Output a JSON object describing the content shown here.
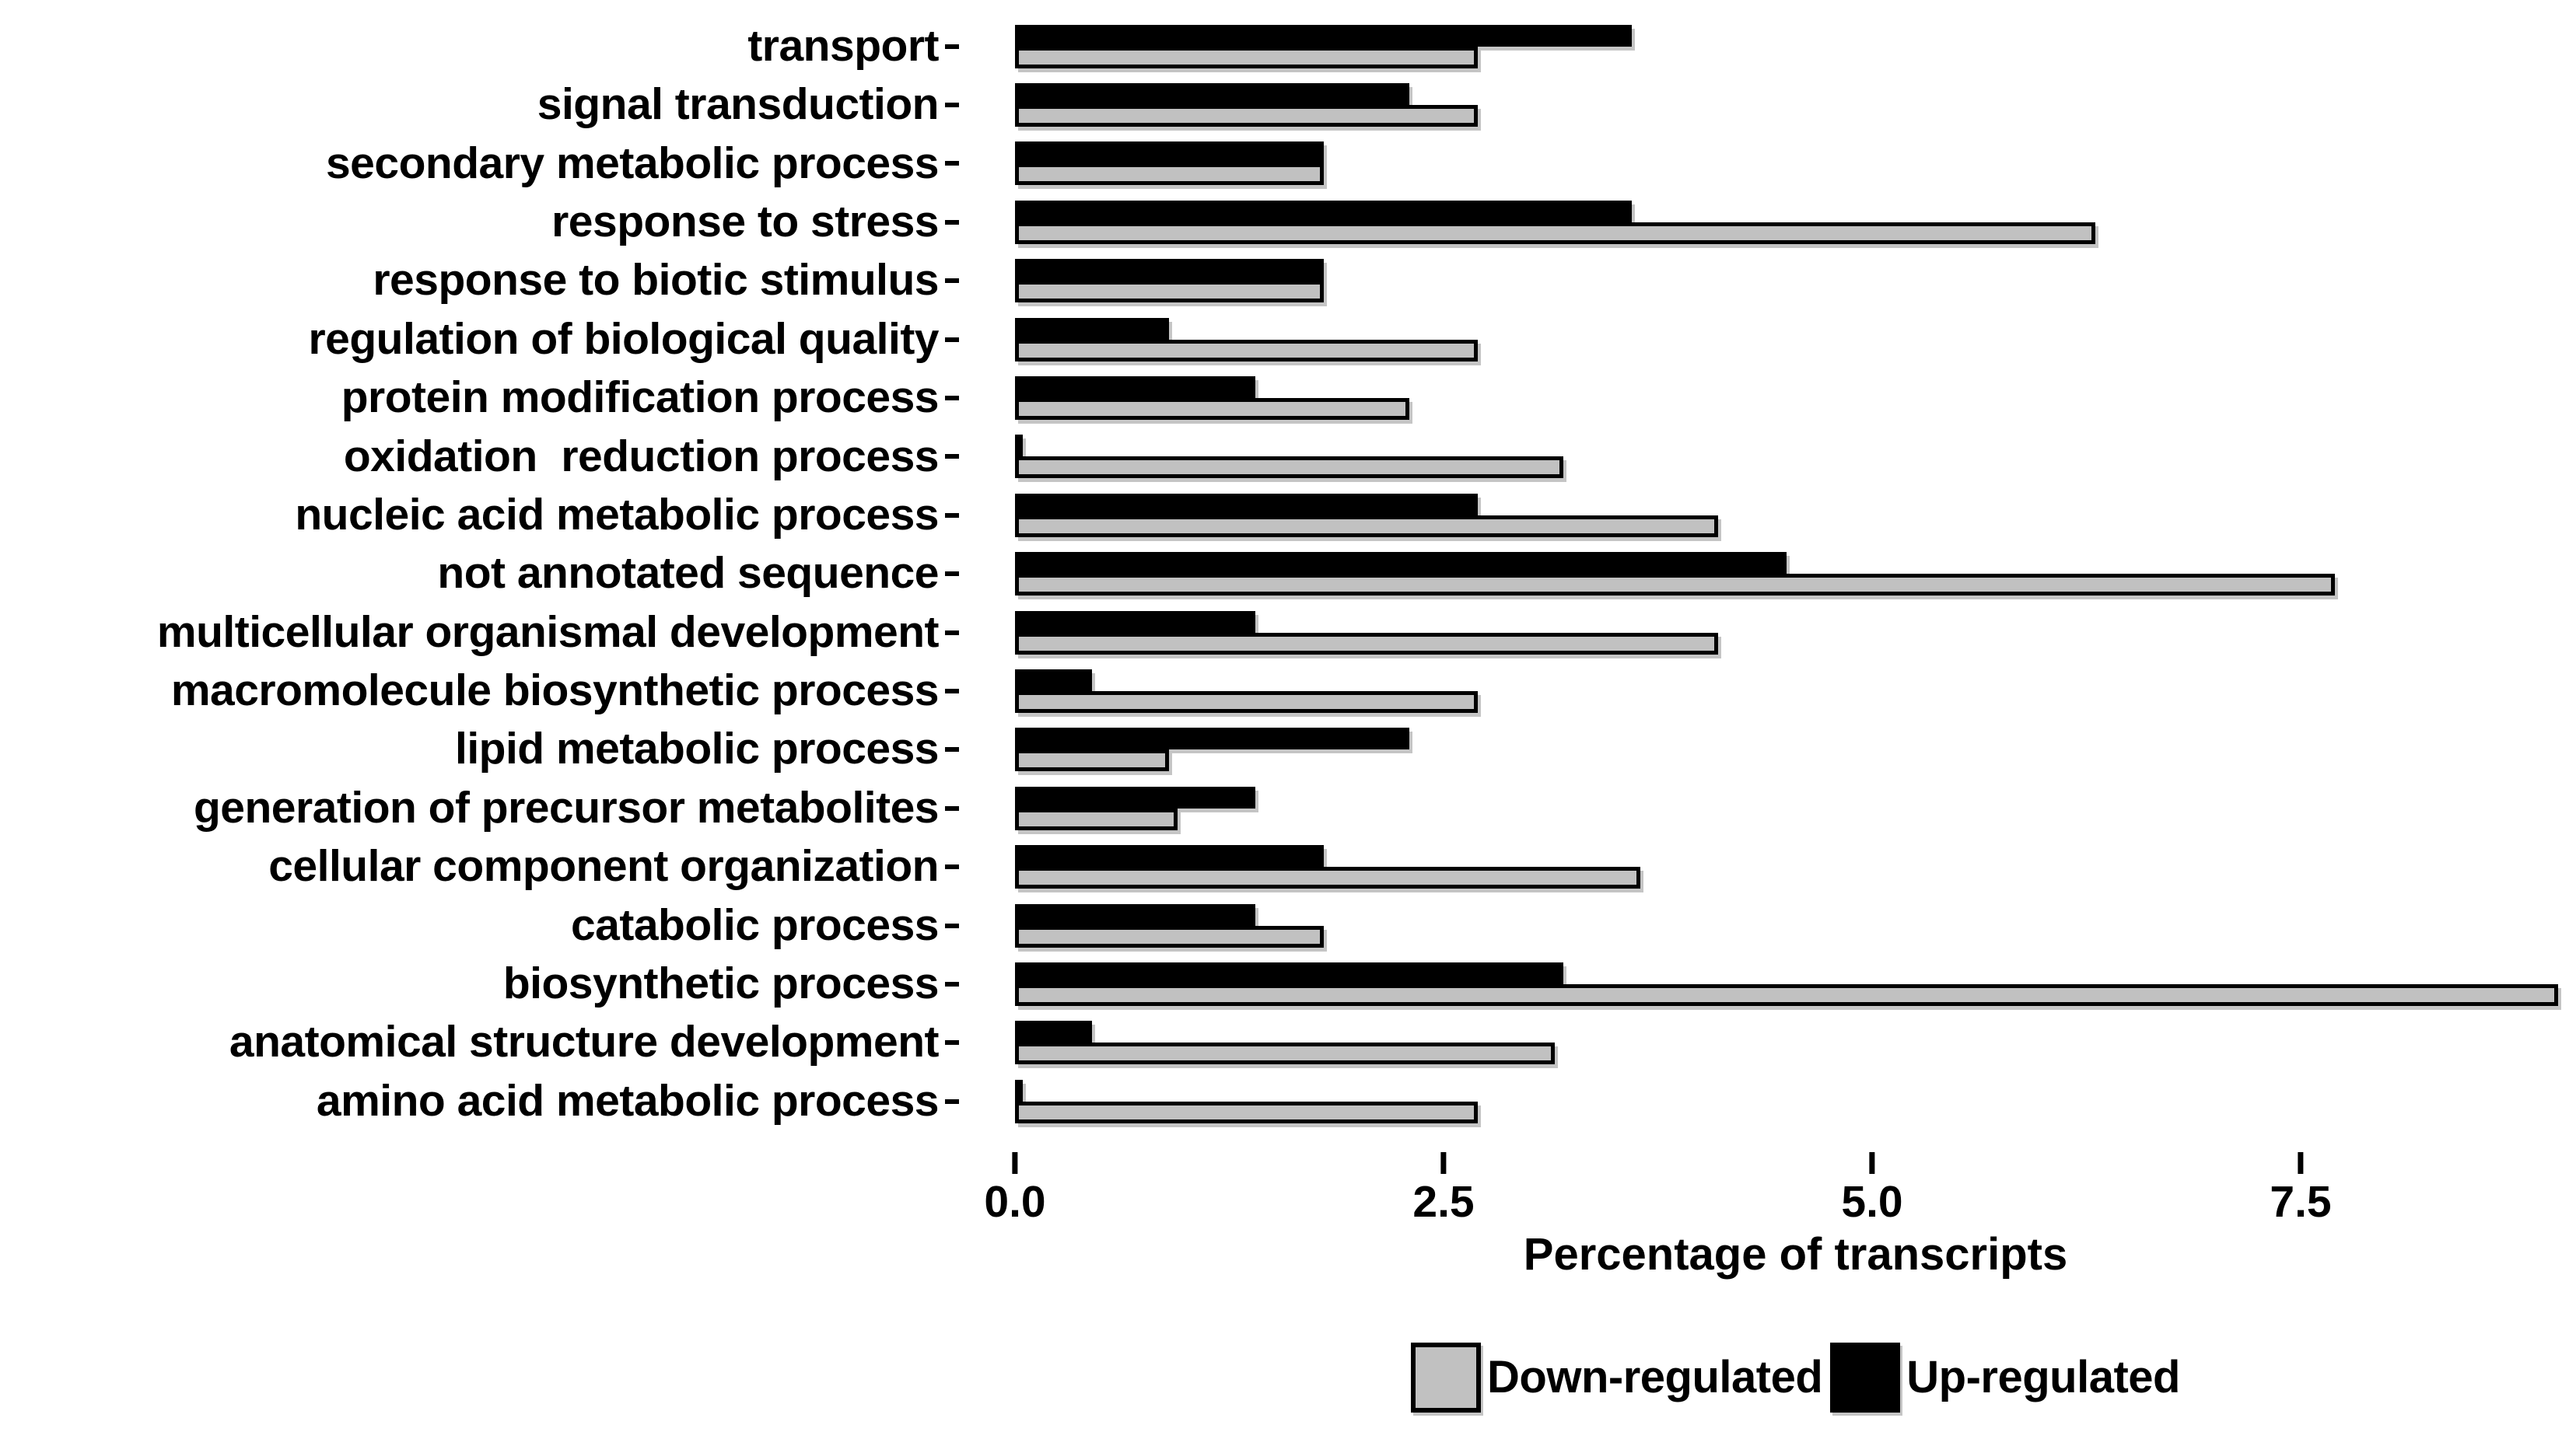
{
  "figure": {
    "background": "#ffffff",
    "bar_border_color": "#000000",
    "shadow_color": "#5a5a5a"
  },
  "chart_data": {
    "type": "bar",
    "orientation": "horizontal",
    "title": "",
    "xlabel": "Percentage of transcripts",
    "ylabel": "",
    "grid": false,
    "categories": [
      "transport",
      "signal transduction",
      "secondary metabolic process",
      "response to stress",
      "response to biotic stimulus",
      "regulation of biological quality",
      "protein modification process",
      "oxidation  reduction process",
      "nucleic acid metabolic process",
      "not annotated sequence",
      "multicellular organismal development",
      "macromolecule biosynthetic process",
      "lipid metabolic process",
      "generation of precursor metabolites",
      "cellular component organization",
      "catabolic process",
      "biosynthetic process",
      "anatomical structure development",
      "amino acid metabolic process"
    ],
    "series": [
      {
        "name": "Up-regulated",
        "color": "#000000",
        "values": [
          3.6,
          2.3,
          1.8,
          3.6,
          1.8,
          0.9,
          1.4,
          0.03,
          2.7,
          4.5,
          1.4,
          0.45,
          2.3,
          1.4,
          1.8,
          1.4,
          3.2,
          0.45,
          0.03
        ]
      },
      {
        "name": "Down-regulated",
        "color": "#c1c1c1",
        "values": [
          2.7,
          2.7,
          1.8,
          6.3,
          1.8,
          2.7,
          2.3,
          3.2,
          4.1,
          7.7,
          4.1,
          2.7,
          0.9,
          0.95,
          3.65,
          1.8,
          9.0,
          3.15,
          2.7
        ]
      }
    ],
    "axis": {
      "tick_labels": [
        "0.0",
        "2.5",
        "5.0",
        "7.5"
      ],
      "tick_values": [
        0,
        2.5,
        5.0,
        7.5
      ],
      "max": 9.106
    },
    "legend": {
      "position": "bottom-center",
      "entries": [
        {
          "label": "Down-regulated",
          "color": "#c1c1c1"
        },
        {
          "label": "Up-regulated",
          "color": "#000000"
        }
      ]
    }
  }
}
